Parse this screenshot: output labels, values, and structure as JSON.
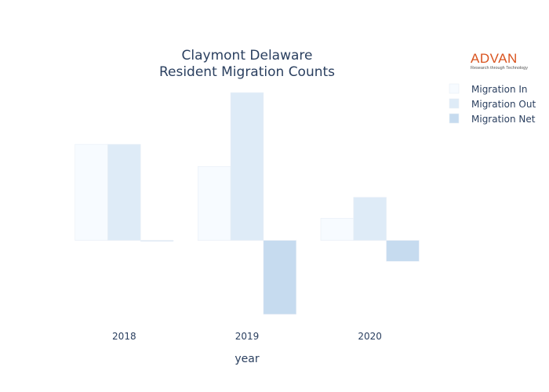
{
  "chart_data": {
    "type": "bar",
    "title_lines": [
      "Claymont Delaware",
      "Resident Migration Counts"
    ],
    "xlabel": "year",
    "ylabel": "",
    "categories": [
      "2018",
      "2019",
      "2020"
    ],
    "series": [
      {
        "name": "Migration In",
        "values": [
          78,
          60,
          18
        ],
        "color": "#f7fbff"
      },
      {
        "name": "Migration Out",
        "values": [
          78,
          120,
          35
        ],
        "color": "#deebf7"
      },
      {
        "name": "Migration Net",
        "values": [
          0,
          -60,
          -17
        ],
        "color": "#c6dbef"
      }
    ],
    "ylim": [
      -62,
      122
    ],
    "grid": false,
    "legend_position": "top-right"
  },
  "logo": {
    "word": "ADVAN",
    "tagline": "Research through Technology"
  }
}
